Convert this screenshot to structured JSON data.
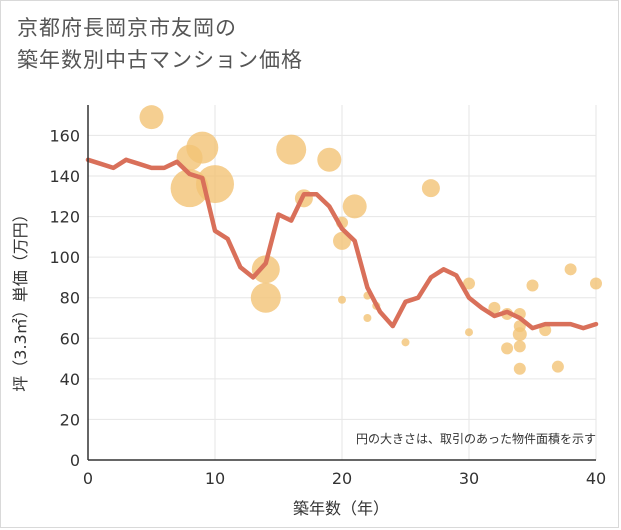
{
  "title": "京都府長岡京市友岡の\n築年数別中古マンション価格",
  "chart_data": {
    "type": "scatter",
    "xlabel": "築年数（年）",
    "ylabel": "坪（3.3㎡）単価（万円）",
    "xlim": [
      0,
      40
    ],
    "ylim": [
      0,
      175
    ],
    "xticks": [
      0,
      10,
      20,
      30,
      40
    ],
    "yticks": [
      0,
      20,
      40,
      60,
      80,
      100,
      120,
      140,
      160
    ],
    "grid": true,
    "note": "円の大きさは、取引のあった物件面積を示す",
    "colors": {
      "bubble": "#f3c375",
      "line": "#d9705a",
      "grid": "#e6e6e6"
    },
    "bubbles": [
      {
        "x": 5,
        "y": 169,
        "size": 12
      },
      {
        "x": 8,
        "y": 149,
        "size": 13
      },
      {
        "x": 8,
        "y": 134,
        "size": 19
      },
      {
        "x": 9,
        "y": 154,
        "size": 16
      },
      {
        "x": 10,
        "y": 136,
        "size": 19
      },
      {
        "x": 14,
        "y": 94,
        "size": 14
      },
      {
        "x": 14,
        "y": 80,
        "size": 15
      },
      {
        "x": 16,
        "y": 153,
        "size": 15
      },
      {
        "x": 17,
        "y": 129,
        "size": 9
      },
      {
        "x": 19,
        "y": 148,
        "size": 12
      },
      {
        "x": 20,
        "y": 117,
        "size": 6
      },
      {
        "x": 20,
        "y": 108,
        "size": 9
      },
      {
        "x": 20,
        "y": 79,
        "size": 4
      },
      {
        "x": 21,
        "y": 125,
        "size": 12
      },
      {
        "x": 22,
        "y": 81,
        "size": 4
      },
      {
        "x": 22,
        "y": 70,
        "size": 4
      },
      {
        "x": 22.7,
        "y": 76,
        "size": 4
      },
      {
        "x": 25,
        "y": 58,
        "size": 4
      },
      {
        "x": 27,
        "y": 134,
        "size": 9
      },
      {
        "x": 30,
        "y": 87,
        "size": 6
      },
      {
        "x": 30,
        "y": 63,
        "size": 4
      },
      {
        "x": 32,
        "y": 75,
        "size": 6
      },
      {
        "x": 33,
        "y": 72,
        "size": 6
      },
      {
        "x": 33,
        "y": 55,
        "size": 6
      },
      {
        "x": 34,
        "y": 72,
        "size": 6
      },
      {
        "x": 34,
        "y": 66,
        "size": 6
      },
      {
        "x": 34,
        "y": 62,
        "size": 7
      },
      {
        "x": 34,
        "y": 56,
        "size": 6
      },
      {
        "x": 34,
        "y": 45,
        "size": 6
      },
      {
        "x": 35,
        "y": 86,
        "size": 6
      },
      {
        "x": 36,
        "y": 64,
        "size": 6
      },
      {
        "x": 37,
        "y": 46,
        "size": 6
      },
      {
        "x": 38,
        "y": 94,
        "size": 6
      },
      {
        "x": 40,
        "y": 87,
        "size": 6
      }
    ],
    "line": [
      {
        "x": 0,
        "y": 148
      },
      {
        "x": 1,
        "y": 146
      },
      {
        "x": 2,
        "y": 144
      },
      {
        "x": 3,
        "y": 148
      },
      {
        "x": 4,
        "y": 146
      },
      {
        "x": 5,
        "y": 144
      },
      {
        "x": 6,
        "y": 144
      },
      {
        "x": 7,
        "y": 147
      },
      {
        "x": 8,
        "y": 141
      },
      {
        "x": 9,
        "y": 139
      },
      {
        "x": 10,
        "y": 113
      },
      {
        "x": 11,
        "y": 109
      },
      {
        "x": 12,
        "y": 95
      },
      {
        "x": 13,
        "y": 90
      },
      {
        "x": 14,
        "y": 97
      },
      {
        "x": 15,
        "y": 121
      },
      {
        "x": 16,
        "y": 118
      },
      {
        "x": 17,
        "y": 131
      },
      {
        "x": 18,
        "y": 131
      },
      {
        "x": 19,
        "y": 125
      },
      {
        "x": 20,
        "y": 114
      },
      {
        "x": 21,
        "y": 108
      },
      {
        "x": 22,
        "y": 85
      },
      {
        "x": 23,
        "y": 73
      },
      {
        "x": 24,
        "y": 66
      },
      {
        "x": 25,
        "y": 78
      },
      {
        "x": 26,
        "y": 80
      },
      {
        "x": 27,
        "y": 90
      },
      {
        "x": 28,
        "y": 94
      },
      {
        "x": 29,
        "y": 91
      },
      {
        "x": 30,
        "y": 80
      },
      {
        "x": 31,
        "y": 75
      },
      {
        "x": 32,
        "y": 71
      },
      {
        "x": 33,
        "y": 73
      },
      {
        "x": 34,
        "y": 70
      },
      {
        "x": 35,
        "y": 65
      },
      {
        "x": 36,
        "y": 67
      },
      {
        "x": 37,
        "y": 67
      },
      {
        "x": 38,
        "y": 67
      },
      {
        "x": 39,
        "y": 65
      },
      {
        "x": 40,
        "y": 67
      }
    ]
  }
}
